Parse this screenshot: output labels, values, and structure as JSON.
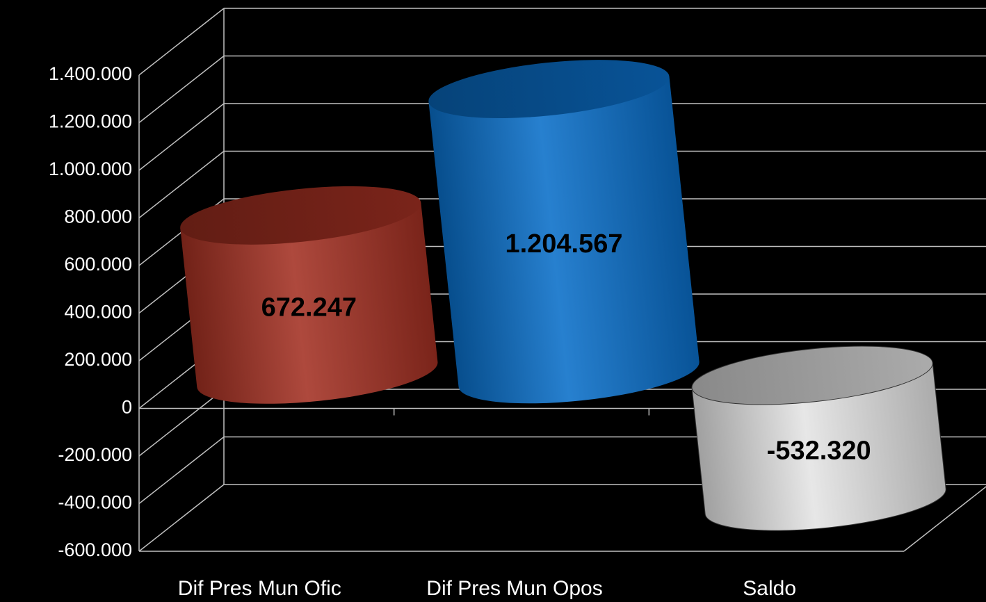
{
  "chart_data": {
    "type": "cylinder",
    "categories": [
      "Dif Pres Mun Ofic",
      "Dif Pres Mun Opos",
      "Saldo"
    ],
    "values": [
      672247,
      1204567,
      -532320
    ],
    "value_labels": [
      "672.247",
      "1.204.567",
      "-532.320"
    ],
    "colors": [
      "#a33022",
      "#0a6fc9",
      "#e4e4e4"
    ],
    "ylim": [
      -600000,
      1400000
    ],
    "yticks": [
      {
        "value": -600000,
        "label": "-600.000"
      },
      {
        "value": -400000,
        "label": "-400.000"
      },
      {
        "value": -200000,
        "label": "-200.000"
      },
      0,
      {
        "value": 200000,
        "label": "200.000"
      },
      {
        "value": 400000,
        "label": "400.000"
      },
      {
        "value": 600000,
        "label": "600.000"
      },
      {
        "value": 800000,
        "label": "800.000"
      },
      {
        "value": 1000000,
        "label": "1.000.000"
      },
      {
        "value": 1200000,
        "label": "1.200.000"
      },
      {
        "value": 1400000,
        "label": "1.400.000"
      }
    ],
    "grid": true
  }
}
